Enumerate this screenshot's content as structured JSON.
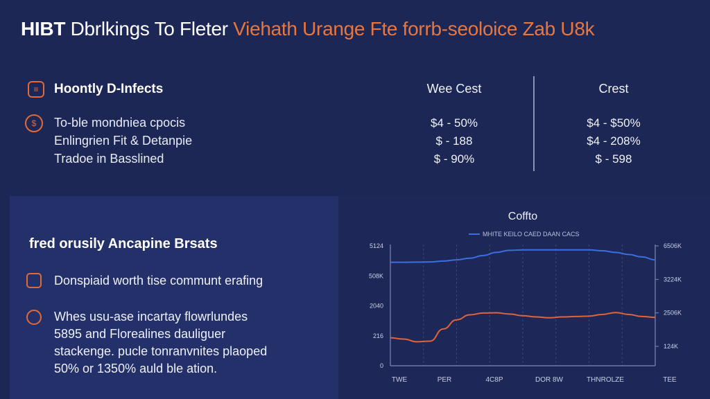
{
  "header": {
    "title_part1": "HIBT",
    "title_part2": " Dbrlkings To Fleter ",
    "title_part3": "Viehath Urange Fte forrb-seoloice  Zab U8k"
  },
  "comparison": {
    "section_heading": "Hoontly D-Infects",
    "col1_header": "Wee Cest",
    "col2_header": "Crest",
    "rows": [
      {
        "label": "To-ble mondniea cpocis",
        "col1": "$4 - 50%",
        "col2": "$4 - $50%"
      },
      {
        "label": "Enlingrien Fit & Detanpie",
        "col1": "$ - 188",
        "col2": "$4 - 208%"
      },
      {
        "label": "Tradoe in Basslined",
        "col1": "$ - 90%",
        "col2": "$ - 598"
      }
    ]
  },
  "bottom_left": {
    "heading": "fred orusily Ancapine Brsats",
    "item1": "Donspiaid worth tise communt erafing",
    "item2_lines": [
      "Whes usu-ase incartay flowrlundes",
      "5895 and Florealines dauliguer",
      "stackenge. pucle tonranvnites plaoped",
      "50% or 1350% auld ble ation."
    ]
  },
  "colors": {
    "background": "#1d2756",
    "accent_orange": "#e8763f",
    "series_blue": "#3b6fe0",
    "series_orange": "#e0643a"
  },
  "chart_data": {
    "type": "line",
    "title": "Coffto",
    "legend": "MHITE KEILO CAED DAAN CACS",
    "legend_placement": "top-center",
    "x_ticks": [
      "TWE",
      "PER",
      "4C8P",
      "DOR 8W",
      "THNROLZE",
      "TEE"
    ],
    "y_left_ticks": [
      "5124",
      "508K",
      "2040",
      "216",
      "0"
    ],
    "y_right_ticks": [
      "6506K",
      "3224K",
      "2506K",
      "124K"
    ],
    "grid": true,
    "x": [
      0,
      1,
      2,
      3,
      4,
      5,
      6,
      7,
      8,
      9,
      10,
      11,
      12,
      13,
      14,
      15,
      16,
      17,
      18,
      19,
      20
    ],
    "series": [
      {
        "name": "",
        "color": "#3b6fe0",
        "values": [
          5000,
          5000,
          5010,
          5020,
          5060,
          5120,
          5200,
          5330,
          5480,
          5580,
          5600,
          5600,
          5600,
          5600,
          5600,
          5600,
          5560,
          5480,
          5380,
          5260,
          5120
        ]
      },
      {
        "name": "",
        "color": "#e0643a",
        "values": [
          1350,
          1290,
          1160,
          1190,
          1780,
          2220,
          2460,
          2550,
          2560,
          2500,
          2420,
          2360,
          2320,
          2360,
          2380,
          2400,
          2480,
          2570,
          2480,
          2380,
          2340
        ]
      }
    ],
    "ylim": [
      0,
      5860
    ]
  }
}
